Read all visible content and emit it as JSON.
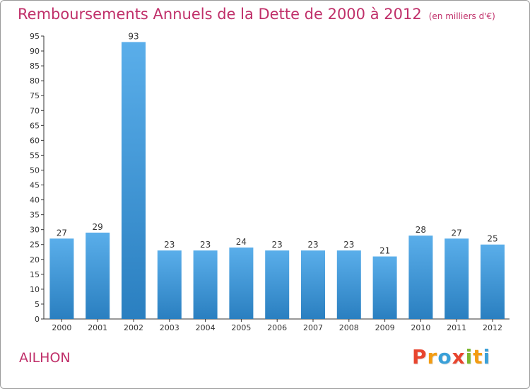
{
  "chart_data": {
    "type": "bar",
    "title": "Remboursements Annuels de la Dette de 2000 à 2012",
    "unit_note": "(en milliers d'€)",
    "categories": [
      "2000",
      "2001",
      "2002",
      "2003",
      "2004",
      "2005",
      "2006",
      "2007",
      "2008",
      "2009",
      "2010",
      "2011",
      "2012"
    ],
    "values": [
      27,
      29,
      93,
      23,
      23,
      24,
      23,
      23,
      23,
      21,
      28,
      27,
      25
    ],
    "ylim": [
      0,
      95
    ],
    "yticks": [
      0,
      5,
      10,
      15,
      20,
      25,
      30,
      35,
      40,
      45,
      50,
      55,
      60,
      65,
      70,
      75,
      80,
      85,
      90,
      95
    ],
    "xlabel": "",
    "ylabel": "",
    "grid": false,
    "colors": {
      "bar_top": "#5aaeea",
      "bar_bottom": "#2a7fc0",
      "axis": "#333333",
      "title": "#c0306a"
    }
  },
  "footer": {
    "town": "AILHON",
    "logo_letters": [
      "P",
      "r",
      "o",
      "x",
      "i",
      "t",
      "i"
    ],
    "logo_colors": [
      "#e8452e",
      "#f39c12",
      "#3aa0d8",
      "#e8452e",
      "#7cb82f",
      "#f39c12",
      "#3aa0d8"
    ]
  }
}
